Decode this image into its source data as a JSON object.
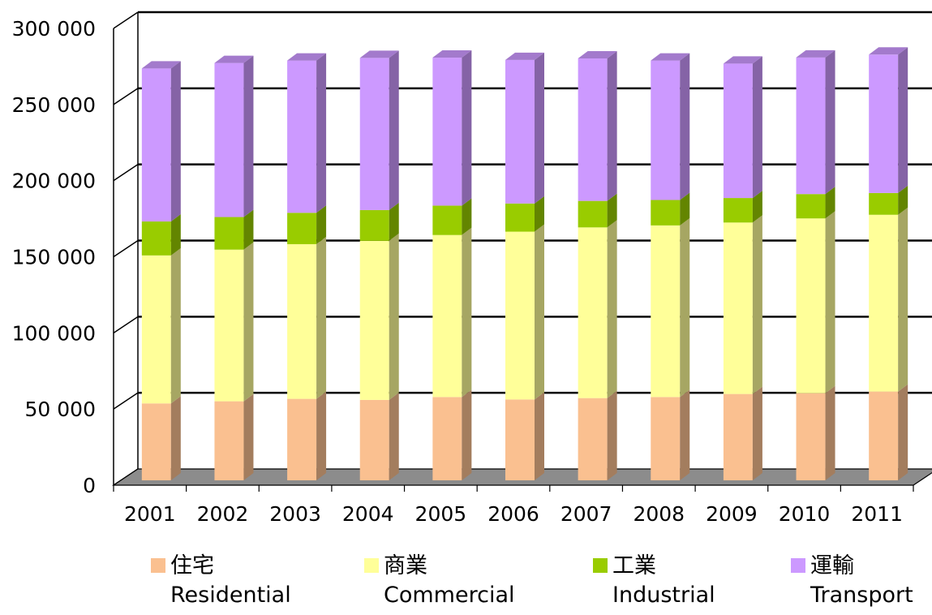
{
  "chart_data": {
    "type": "bar",
    "stacked": true,
    "style": "3d",
    "categories": [
      "2001",
      "2002",
      "2003",
      "2004",
      "2005",
      "2006",
      "2007",
      "2008",
      "2009",
      "2010",
      "2011"
    ],
    "ylim": [
      0,
      300000
    ],
    "yticks": [
      "0",
      "50 000",
      "100 000",
      "150 000",
      "200 000",
      "250 000",
      "300 000"
    ],
    "grid": true,
    "legend_position": "bottom",
    "series": [
      {
        "name": "住宅\nResidential",
        "name_zh": "住宅",
        "name_en": "Residential",
        "color": "#FAC090",
        "values": [
          50500,
          51900,
          53500,
          52800,
          54700,
          53100,
          54000,
          54700,
          56700,
          57200,
          58300
        ]
      },
      {
        "name": "商業\nCommercial",
        "name_zh": "商業",
        "name_en": "Commercial",
        "color": "#FFFF99",
        "values": [
          97200,
          99600,
          101600,
          104500,
          106400,
          110200,
          112100,
          112700,
          112600,
          114800,
          116100
        ]
      },
      {
        "name": "工業\nIndustrial",
        "name_zh": "工業",
        "name_en": "Industrial",
        "color": "#99CC00",
        "values": [
          22300,
          21400,
          20600,
          20200,
          19300,
          18500,
          17400,
          16700,
          16100,
          16000,
          14300
        ]
      },
      {
        "name": "運輸\nTransport",
        "name_zh": "運輸",
        "name_en": "Transport",
        "color": "#CC99FF",
        "values": [
          100500,
          101200,
          100000,
          99900,
          97200,
          94300,
          93600,
          91600,
          88300,
          89700,
          90900
        ]
      }
    ]
  }
}
